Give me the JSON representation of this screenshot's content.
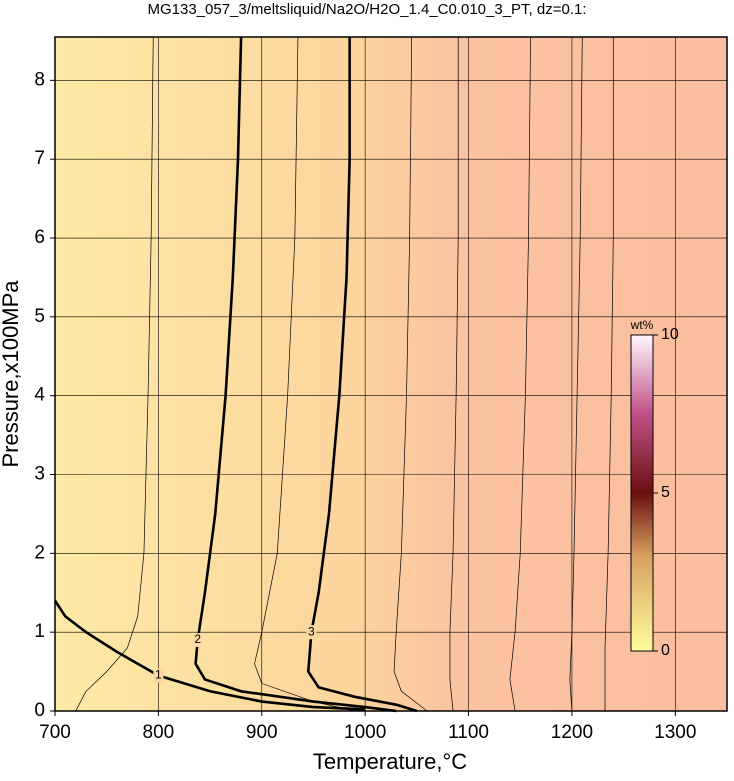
{
  "chart_data": {
    "type": "contour",
    "title": "MG133_057_3/meltsliquid/Na2O/H2O_1.4_C0.010_3_PT, dz=0.1:",
    "x_label": "Temperature,°C",
    "y_label": "Pressure,x100MPa",
    "xlim": [
      700,
      1350
    ],
    "ylim": [
      0,
      8.55
    ],
    "xticks": [
      700,
      800,
      900,
      1000,
      1100,
      1200,
      1300
    ],
    "yticks": [
      0,
      1,
      2,
      3,
      4,
      5,
      6,
      7,
      8
    ],
    "grid": true,
    "contours": [
      {
        "level": 1,
        "bold": true,
        "x": [
          700,
          710,
          730,
          760,
          800,
          850,
          900,
          950,
          1000
        ],
        "y": [
          1.4,
          1.2,
          1.0,
          0.75,
          0.45,
          0.25,
          0.12,
          0.05,
          0.02
        ]
      },
      {
        "level": 2,
        "bold": true,
        "x": [
          880,
          877,
          872,
          865,
          855,
          845,
          838,
          836,
          845,
          880,
          950,
          1000,
          1030
        ],
        "y": [
          8.55,
          7,
          5.5,
          4,
          2.5,
          1.5,
          0.9,
          0.6,
          0.4,
          0.25,
          0.12,
          0.05,
          0
        ]
      },
      {
        "level": 3,
        "bold": true,
        "x": [
          985,
          985,
          982,
          975,
          965,
          955,
          948,
          945,
          955,
          990,
          1030,
          1050
        ],
        "y": [
          8.55,
          7,
          5.5,
          4,
          2.5,
          1.5,
          1.0,
          0.5,
          0.3,
          0.18,
          0.08,
          0
        ]
      },
      {
        "level": 1.5,
        "bold": false,
        "x": [
          795,
          793,
          790,
          786,
          780,
          770,
          750,
          730,
          720
        ],
        "y": [
          8.55,
          6,
          4,
          2,
          1.2,
          0.8,
          0.5,
          0.25,
          0
        ]
      },
      {
        "level": 2.5,
        "bold": false,
        "x": [
          935,
          932,
          925,
          915,
          900,
          893,
          900,
          950,
          990
        ],
        "y": [
          8.55,
          6,
          4,
          2,
          1.0,
          0.6,
          0.35,
          0.12,
          0
        ]
      },
      {
        "level": 3.5,
        "bold": false,
        "x": [
          1045,
          1043,
          1040,
          1035,
          1030,
          1028,
          1035,
          1060
        ],
        "y": [
          8.55,
          6,
          4,
          2,
          1.0,
          0.5,
          0.25,
          0
        ]
      },
      {
        "level": 4,
        "bold": false,
        "x": [
          1090,
          1090,
          1088,
          1085,
          1082,
          1082,
          1085
        ],
        "y": [
          8.55,
          6,
          4,
          2,
          1.0,
          0.4,
          0
        ]
      },
      {
        "level": 4.5,
        "bold": false,
        "x": [
          1160,
          1158,
          1155,
          1150,
          1145,
          1140,
          1145
        ],
        "y": [
          8.55,
          6,
          4,
          2,
          1.0,
          0.4,
          0
        ]
      },
      {
        "level": 5,
        "bold": false,
        "x": [
          1210,
          1208,
          1205,
          1202,
          1200,
          1198,
          1200
        ],
        "y": [
          8.55,
          6,
          4,
          2,
          1.0,
          0.4,
          0
        ]
      },
      {
        "level": 5.5,
        "bold": false,
        "x": [
          1240,
          1240,
          1238,
          1235,
          1232,
          1232
        ],
        "y": [
          8.55,
          6,
          4,
          2,
          0.8,
          0
        ]
      }
    ],
    "colorbar": {
      "label": "wt%",
      "lim": [
        0,
        10
      ],
      "ticks": [
        0,
        5,
        10
      ]
    }
  }
}
